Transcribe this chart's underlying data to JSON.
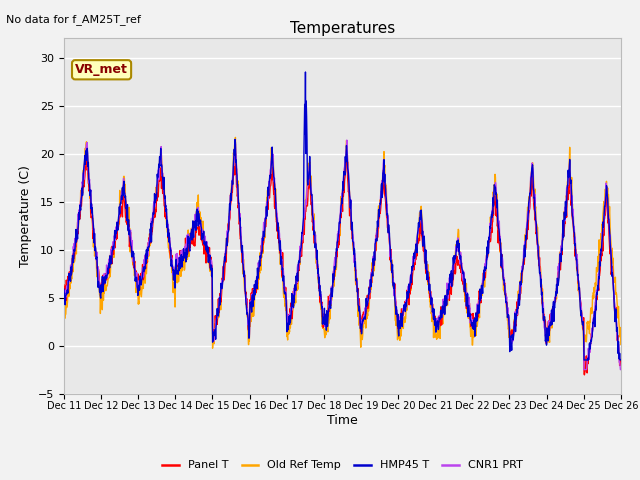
{
  "title": "Temperatures",
  "ylabel": "Temperature (C)",
  "xlabel": "Time",
  "top_left_text": "No data for f_AM25T_ref",
  "box_label": "VR_met",
  "ylim": [
    -5,
    32
  ],
  "yticks": [
    -5,
    0,
    5,
    10,
    15,
    20,
    25,
    30
  ],
  "xtick_labels": [
    "Dec 11",
    "Dec 12",
    "Dec 13",
    "Dec 14",
    "Dec 15",
    "Dec 16",
    "Dec 17",
    "Dec 18",
    "Dec 19",
    "Dec 20",
    "Dec 21",
    "Dec 22",
    "Dec 23",
    "Dec 24",
    "Dec 25",
    "Dec 26"
  ],
  "colors": {
    "panel_t": "#ff0000",
    "old_ref_temp": "#ffa500",
    "hmp45_t": "#0000cd",
    "cnr1_prt": "#bb44ee"
  },
  "legend": [
    "Panel T",
    "Old Ref Temp",
    "HMP45 T",
    "CNR1 PRT"
  ],
  "plot_bg": "#e8e8e8",
  "fig_bg": "#f2f2f2",
  "n_points": 1440,
  "days": 15
}
